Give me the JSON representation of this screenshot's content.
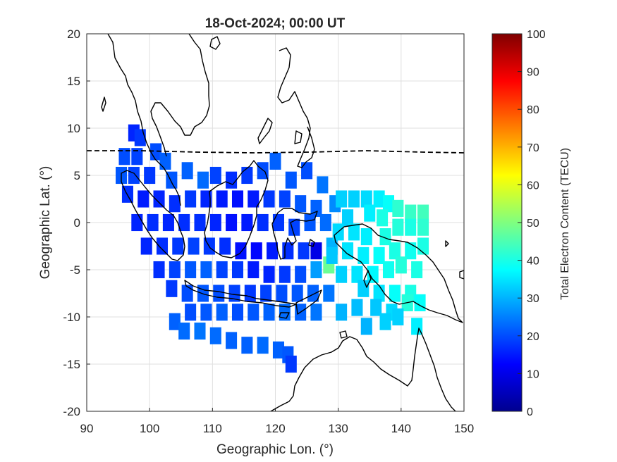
{
  "chart_data": {
    "type": "heatmap",
    "title": "18-Oct-2024; 00:00 UT",
    "xlabel": "Geographic Lon. (°)",
    "ylabel": "Geographic Lat. (°)",
    "xlim": [
      90,
      150
    ],
    "ylim": [
      -20,
      20
    ],
    "xticks": [
      90,
      100,
      110,
      120,
      130,
      140,
      150
    ],
    "yticks": [
      20,
      15,
      10,
      5,
      0,
      -5,
      -10,
      -15,
      -20
    ],
    "grid": true,
    "colormap": "jet",
    "colorbar": {
      "label": "Total Electron Content (TECU)",
      "range": [
        0,
        100
      ],
      "ticks": [
        100,
        90,
        80,
        70,
        60,
        50,
        40,
        30,
        20,
        10,
        0
      ]
    },
    "magnetic_equator_line": "dashed",
    "tec_cells": [
      {
        "lon": 97.5,
        "lat": 9.5,
        "tec": 16
      },
      {
        "lon": 98.5,
        "lat": 9.0,
        "tec": 18
      },
      {
        "lon": 96.0,
        "lat": 7.0,
        "tec": 20
      },
      {
        "lon": 98.0,
        "lat": 7.0,
        "tec": 19
      },
      {
        "lon": 101.0,
        "lat": 7.5,
        "tec": 20
      },
      {
        "lon": 102.5,
        "lat": 6.5,
        "tec": 22
      },
      {
        "lon": 95.5,
        "lat": 5.0,
        "tec": 21
      },
      {
        "lon": 97.5,
        "lat": 5.0,
        "tec": 19
      },
      {
        "lon": 100.0,
        "lat": 5.0,
        "tec": 18
      },
      {
        "lon": 103.5,
        "lat": 4.5,
        "tec": 21
      },
      {
        "lon": 106.0,
        "lat": 5.5,
        "tec": 22
      },
      {
        "lon": 108.5,
        "lat": 4.5,
        "tec": 23
      },
      {
        "lon": 110.5,
        "lat": 5.0,
        "tec": 19
      },
      {
        "lon": 113.0,
        "lat": 4.5,
        "tec": 17
      },
      {
        "lon": 115.5,
        "lat": 5.0,
        "tec": 18
      },
      {
        "lon": 118.0,
        "lat": 5.5,
        "tec": 20
      },
      {
        "lon": 120.0,
        "lat": 6.5,
        "tec": 22
      },
      {
        "lon": 122.5,
        "lat": 4.5,
        "tec": 21
      },
      {
        "lon": 125.0,
        "lat": 5.5,
        "tec": 20
      },
      {
        "lon": 127.5,
        "lat": 4.0,
        "tec": 24
      },
      {
        "lon": 96.5,
        "lat": 3.0,
        "tec": 17
      },
      {
        "lon": 99.0,
        "lat": 2.5,
        "tec": 15
      },
      {
        "lon": 101.5,
        "lat": 2.5,
        "tec": 16
      },
      {
        "lon": 104.0,
        "lat": 2.0,
        "tec": 17
      },
      {
        "lon": 106.5,
        "lat": 2.5,
        "tec": 18
      },
      {
        "lon": 109.0,
        "lat": 2.5,
        "tec": 16
      },
      {
        "lon": 111.5,
        "lat": 2.5,
        "tec": 15
      },
      {
        "lon": 114.0,
        "lat": 2.5,
        "tec": 14
      },
      {
        "lon": 116.5,
        "lat": 2.5,
        "tec": 15
      },
      {
        "lon": 119.0,
        "lat": 2.5,
        "tec": 18
      },
      {
        "lon": 121.5,
        "lat": 2.5,
        "tec": 19
      },
      {
        "lon": 124.0,
        "lat": 2.0,
        "tec": 21
      },
      {
        "lon": 126.5,
        "lat": 1.5,
        "tec": 22
      },
      {
        "lon": 129.5,
        "lat": 2.0,
        "tec": 26
      },
      {
        "lon": 98.0,
        "lat": 0.0,
        "tec": 16
      },
      {
        "lon": 100.5,
        "lat": 0.0,
        "tec": 17
      },
      {
        "lon": 103.0,
        "lat": 0.0,
        "tec": 16
      },
      {
        "lon": 105.5,
        "lat": 0.0,
        "tec": 17
      },
      {
        "lon": 108.0,
        "lat": 0.0,
        "tec": 17
      },
      {
        "lon": 110.5,
        "lat": 0.0,
        "tec": 16
      },
      {
        "lon": 113.0,
        "lat": 0.0,
        "tec": 14
      },
      {
        "lon": 115.5,
        "lat": 0.0,
        "tec": 15
      },
      {
        "lon": 118.0,
        "lat": 0.0,
        "tec": 17
      },
      {
        "lon": 120.5,
        "lat": 0.0,
        "tec": 18
      },
      {
        "lon": 123.0,
        "lat": -0.5,
        "tec": 19
      },
      {
        "lon": 125.5,
        "lat": 0.0,
        "tec": 21
      },
      {
        "lon": 128.0,
        "lat": 0.0,
        "tec": 23
      },
      {
        "lon": 99.5,
        "lat": -2.5,
        "tec": 16
      },
      {
        "lon": 102.0,
        "lat": -2.5,
        "tec": 17
      },
      {
        "lon": 104.5,
        "lat": -2.5,
        "tec": 18
      },
      {
        "lon": 107.0,
        "lat": -2.5,
        "tec": 19
      },
      {
        "lon": 109.5,
        "lat": -2.5,
        "tec": 18
      },
      {
        "lon": 112.0,
        "lat": -2.5,
        "tec": 17
      },
      {
        "lon": 114.5,
        "lat": -3.0,
        "tec": 14
      },
      {
        "lon": 117.0,
        "lat": -3.0,
        "tec": 13
      },
      {
        "lon": 119.5,
        "lat": -3.0,
        "tec": 15
      },
      {
        "lon": 122.0,
        "lat": -3.0,
        "tec": 17
      },
      {
        "lon": 124.5,
        "lat": -3.0,
        "tec": 18
      },
      {
        "lon": 126.5,
        "lat": -3.0,
        "tec": 10
      },
      {
        "lon": 129.0,
        "lat": -2.5,
        "tec": 30
      },
      {
        "lon": 101.5,
        "lat": -5.0,
        "tec": 17
      },
      {
        "lon": 104.0,
        "lat": -5.0,
        "tec": 19
      },
      {
        "lon": 106.5,
        "lat": -5.0,
        "tec": 21
      },
      {
        "lon": 109.0,
        "lat": -5.0,
        "tec": 22
      },
      {
        "lon": 111.5,
        "lat": -5.0,
        "tec": 19
      },
      {
        "lon": 114.0,
        "lat": -5.0,
        "tec": 18
      },
      {
        "lon": 116.5,
        "lat": -5.0,
        "tec": 15
      },
      {
        "lon": 119.0,
        "lat": -5.5,
        "tec": 16
      },
      {
        "lon": 121.5,
        "lat": -5.5,
        "tec": 18
      },
      {
        "lon": 124.0,
        "lat": -5.5,
        "tec": 20
      },
      {
        "lon": 126.5,
        "lat": -5.0,
        "tec": 28
      },
      {
        "lon": 128.5,
        "lat": -4.5,
        "tec": 48
      },
      {
        "lon": 103.5,
        "lat": -7.0,
        "tec": 18
      },
      {
        "lon": 106.0,
        "lat": -7.5,
        "tec": 20
      },
      {
        "lon": 108.5,
        "lat": -7.5,
        "tec": 21
      },
      {
        "lon": 111.0,
        "lat": -7.5,
        "tec": 20
      },
      {
        "lon": 113.5,
        "lat": -7.5,
        "tec": 19
      },
      {
        "lon": 116.0,
        "lat": -7.5,
        "tec": 18
      },
      {
        "lon": 118.5,
        "lat": -7.5,
        "tec": 19
      },
      {
        "lon": 121.0,
        "lat": -7.5,
        "tec": 20
      },
      {
        "lon": 123.5,
        "lat": -7.5,
        "tec": 21
      },
      {
        "lon": 126.0,
        "lat": -7.5,
        "tec": 22
      },
      {
        "lon": 128.5,
        "lat": -7.5,
        "tec": 24
      },
      {
        "lon": 106.5,
        "lat": -9.5,
        "tec": 20
      },
      {
        "lon": 109.0,
        "lat": -9.5,
        "tec": 21
      },
      {
        "lon": 111.5,
        "lat": -9.5,
        "tec": 22
      },
      {
        "lon": 114.0,
        "lat": -9.5,
        "tec": 20
      },
      {
        "lon": 116.5,
        "lat": -9.5,
        "tec": 21
      },
      {
        "lon": 119.0,
        "lat": -9.5,
        "tec": 22
      },
      {
        "lon": 121.5,
        "lat": -9.5,
        "tec": 23
      },
      {
        "lon": 124.0,
        "lat": -9.5,
        "tec": 22
      },
      {
        "lon": 126.5,
        "lat": -9.5,
        "tec": 24
      },
      {
        "lon": 104.0,
        "lat": -10.5,
        "tec": 22
      },
      {
        "lon": 105.5,
        "lat": -11.5,
        "tec": 23
      },
      {
        "lon": 108.0,
        "lat": -11.5,
        "tec": 24
      },
      {
        "lon": 110.5,
        "lat": -12.0,
        "tec": 23
      },
      {
        "lon": 113.0,
        "lat": -12.5,
        "tec": 22
      },
      {
        "lon": 115.5,
        "lat": -13.0,
        "tec": 22
      },
      {
        "lon": 118.0,
        "lat": -13.0,
        "tec": 23
      },
      {
        "lon": 120.5,
        "lat": -13.5,
        "tec": 22
      },
      {
        "lon": 122.0,
        "lat": -14.0,
        "tec": 21
      },
      {
        "lon": 122.5,
        "lat": -15.0,
        "tec": 18
      },
      {
        "lon": 130.5,
        "lat": 2.5,
        "tec": 33
      },
      {
        "lon": 132.5,
        "lat": 2.5,
        "tec": 33
      },
      {
        "lon": 134.5,
        "lat": 2.5,
        "tec": 34
      },
      {
        "lon": 136.5,
        "lat": 2.5,
        "tec": 36
      },
      {
        "lon": 138.0,
        "lat": 2.0,
        "tec": 38
      },
      {
        "lon": 131.5,
        "lat": 0.5,
        "tec": 33
      },
      {
        "lon": 135.0,
        "lat": 1.0,
        "tec": 36
      },
      {
        "lon": 137.0,
        "lat": 0.5,
        "tec": 40
      },
      {
        "lon": 139.5,
        "lat": 1.5,
        "tec": 42
      },
      {
        "lon": 141.5,
        "lat": 1.0,
        "tec": 43
      },
      {
        "lon": 143.5,
        "lat": 1.0,
        "tec": 44
      },
      {
        "lon": 139.5,
        "lat": -0.5,
        "tec": 41
      },
      {
        "lon": 141.5,
        "lat": -0.5,
        "tec": 40
      },
      {
        "lon": 143.5,
        "lat": -0.5,
        "tec": 42
      },
      {
        "lon": 130.0,
        "lat": -1.0,
        "tec": 34
      },
      {
        "lon": 132.5,
        "lat": -1.0,
        "tec": 35
      },
      {
        "lon": 134.5,
        "lat": -1.5,
        "tec": 36
      },
      {
        "lon": 137.5,
        "lat": -1.5,
        "tec": 40
      },
      {
        "lon": 129.0,
        "lat": -3.5,
        "tec": 32
      },
      {
        "lon": 131.5,
        "lat": -3.0,
        "tec": 35
      },
      {
        "lon": 134.0,
        "lat": -3.5,
        "tec": 36
      },
      {
        "lon": 136.5,
        "lat": -3.5,
        "tec": 38
      },
      {
        "lon": 139.0,
        "lat": -3.0,
        "tec": 40
      },
      {
        "lon": 141.5,
        "lat": -3.0,
        "tec": 39
      },
      {
        "lon": 143.5,
        "lat": -2.5,
        "tec": 40
      },
      {
        "lon": 130.5,
        "lat": -5.5,
        "tec": 33
      },
      {
        "lon": 133.0,
        "lat": -5.5,
        "tec": 35
      },
      {
        "lon": 135.5,
        "lat": -5.5,
        "tec": 37
      },
      {
        "lon": 138.0,
        "lat": -5.0,
        "tec": 39
      },
      {
        "lon": 140.0,
        "lat": -4.5,
        "tec": 41
      },
      {
        "lon": 142.5,
        "lat": -5.0,
        "tec": 40
      },
      {
        "lon": 134.0,
        "lat": -7.0,
        "tec": 33
      },
      {
        "lon": 136.5,
        "lat": -7.5,
        "tec": 35
      },
      {
        "lon": 139.0,
        "lat": -7.5,
        "tec": 38
      },
      {
        "lon": 141.5,
        "lat": -7.5,
        "tec": 40
      },
      {
        "lon": 130.5,
        "lat": -9.5,
        "tec": 30
      },
      {
        "lon": 133.0,
        "lat": -9.0,
        "tec": 31
      },
      {
        "lon": 136.0,
        "lat": -9.0,
        "tec": 32
      },
      {
        "lon": 138.5,
        "lat": -9.5,
        "tec": 34
      },
      {
        "lon": 141.0,
        "lat": -8.5,
        "tec": 41
      },
      {
        "lon": 143.0,
        "lat": -8.5,
        "tec": 38
      },
      {
        "lon": 137.5,
        "lat": -10.5,
        "tec": 33
      },
      {
        "lon": 139.5,
        "lat": -10.0,
        "tec": 33
      },
      {
        "lon": 134.5,
        "lat": -11.0,
        "tec": 30
      },
      {
        "lon": 142.5,
        "lat": -11.0,
        "tec": 36
      }
    ]
  }
}
